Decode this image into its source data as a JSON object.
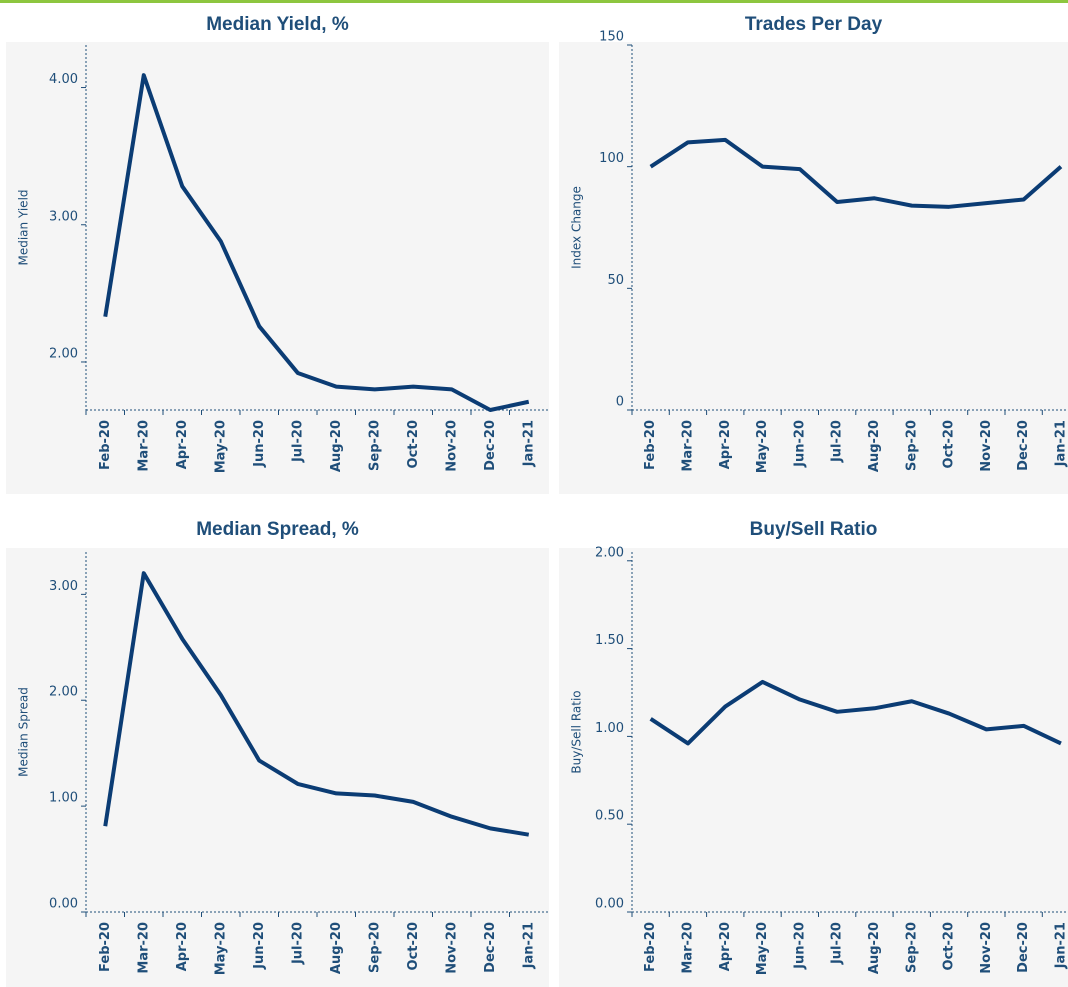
{
  "chart_data": [
    {
      "type": "line",
      "title": "Median Yield, %",
      "y_label": "Median Yield",
      "categories": [
        "Feb-20",
        "Mar-20",
        "Apr-20",
        "May-20",
        "Jun-20",
        "Jul-20",
        "Aug-20",
        "Sep-20",
        "Oct-20",
        "Nov-20",
        "Dec-20",
        "Jan-21"
      ],
      "values": [
        2.33,
        4.09,
        3.28,
        2.88,
        2.26,
        1.92,
        1.82,
        1.8,
        1.82,
        1.8,
        1.65,
        1.71
      ],
      "color": "#0b3c74",
      "ylim": [
        1.65,
        4.31
      ],
      "yticks": [
        {
          "value": 2,
          "label": "2.00"
        },
        {
          "value": 3,
          "label": "3.00"
        },
        {
          "value": 4,
          "label": "4.00"
        }
      ]
    },
    {
      "type": "line",
      "title": "Trades Per Day",
      "y_label": "Index Change",
      "categories": [
        "Feb-20",
        "Mar-20",
        "Apr-20",
        "May-20",
        "Jun-20",
        "Jul-20",
        "Aug-20",
        "Sep-20",
        "Oct-20",
        "Nov-20",
        "Dec-20",
        "Jan-21"
      ],
      "values": [
        100,
        110,
        111,
        100,
        99,
        85.5,
        87,
        84,
        83.5,
        85,
        86.5,
        100
      ],
      "color": "#0b3c74",
      "ylim": [
        0,
        150
      ],
      "yticks": [
        0,
        50,
        100,
        150
      ]
    },
    {
      "type": "line",
      "title": "Median Spread, %",
      "y_label": "Median Spread",
      "categories": [
        "Feb-20",
        "Mar-20",
        "Apr-20",
        "May-20",
        "Jun-20",
        "Jul-20",
        "Aug-20",
        "Sep-20",
        "Oct-20",
        "Nov-20",
        "Dec-20",
        "Jan-21"
      ],
      "values": [
        0.81,
        3.2,
        2.58,
        2.05,
        1.43,
        1.21,
        1.12,
        1.1,
        1.04,
        0.9,
        0.79,
        0.73
      ],
      "color": "#0b3c74",
      "ylim": [
        0,
        3.4
      ],
      "yticks": [
        {
          "value": 0,
          "label": "0.00"
        },
        {
          "value": 1,
          "label": "1.00"
        },
        {
          "value": 2,
          "label": "2.00"
        },
        {
          "value": 3,
          "label": "3.00"
        }
      ]
    },
    {
      "type": "line",
      "title": "Buy/Sell Ratio",
      "y_label": "Buy/Sell Ratio",
      "categories": [
        "Feb-20",
        "Mar-20",
        "Apr-20",
        "May-20",
        "Jun-20",
        "Jul-20",
        "Aug-20",
        "Sep-20",
        "Oct-20",
        "Nov-20",
        "Dec-20",
        "Jan-21"
      ],
      "values": [
        1.1,
        0.96,
        1.17,
        1.31,
        1.21,
        1.14,
        1.16,
        1.2,
        1.13,
        1.04,
        1.06,
        0.96
      ],
      "color": "#0b3c74",
      "ylim": [
        0,
        2.05
      ],
      "yticks": [
        {
          "value": 0,
          "label": "0.00"
        },
        {
          "value": 0.5,
          "label": "0.50"
        },
        {
          "value": 1,
          "label": "1.00"
        },
        {
          "value": 1.5,
          "label": "1.50"
        },
        {
          "value": 2,
          "label": "2.00"
        }
      ]
    }
  ]
}
